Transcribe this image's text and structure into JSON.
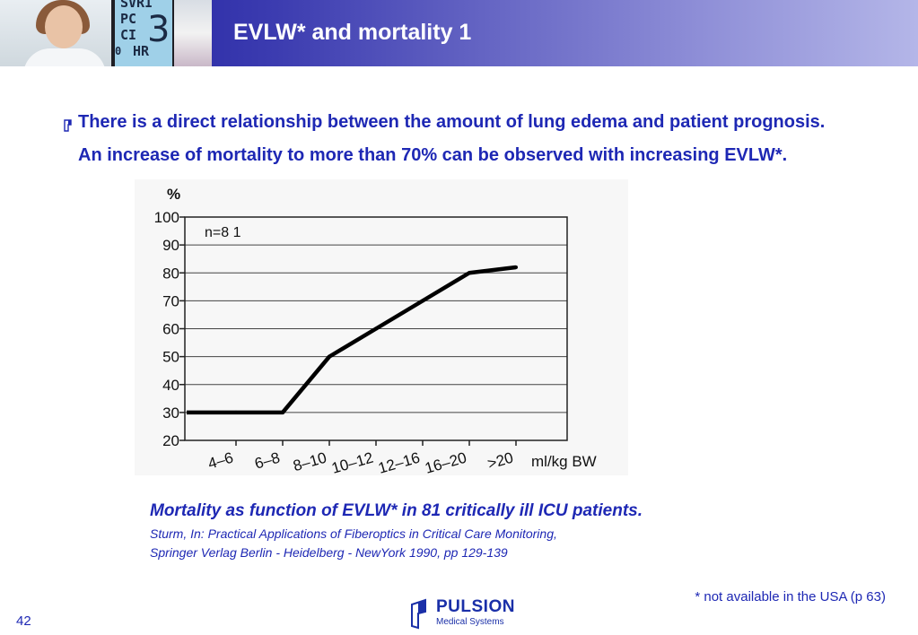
{
  "header": {
    "title": "EVLW* and mortality 1",
    "monitor_labels": [
      "SVRI",
      "PC",
      "CI",
      "HR"
    ],
    "monitor_big": "3",
    "monitor_small": "0"
  },
  "bullet": {
    "line1": "There is a direct relationship between the amount of lung edema and patient prognosis.",
    "line2": "An increase of mortality to more than 70% can be observed with increasing EVLW*."
  },
  "chart_data": {
    "type": "line",
    "ylabel": "%",
    "xlabel": "ml/kg BW",
    "annotation": "n=8 1",
    "categories": [
      "4–6",
      "6–8",
      "8–10",
      "10–12",
      "12–16",
      "16–20",
      ">20"
    ],
    "y_ticks": [
      20,
      30,
      40,
      50,
      60,
      70,
      80,
      90,
      100
    ],
    "ylim": [
      20,
      100
    ],
    "grid": true,
    "series": [
      {
        "x": [
          "4–6",
          "6–8",
          "8–10",
          "10–12",
          "12–16",
          "16–20",
          ">20"
        ],
        "values": [
          30,
          30,
          50,
          60,
          70,
          80,
          82
        ]
      }
    ]
  },
  "caption": {
    "title": "Mortality as function of EVLW* in 81 critically ill ICU patients.",
    "source_line1": "Sturm, In: Practical Applications of Fiberoptics in Critical Care Monitoring,",
    "source_line2": "Springer Verlag Berlin - Heidelberg - NewYork 1990, pp 129-139"
  },
  "footer": {
    "footnote": "* not available in the USA (p 63)",
    "page_number": "42",
    "logo_name": "PULSION",
    "logo_sub": "Medical Systems"
  },
  "colors": {
    "accent": "#1e28b4",
    "banner_start": "#14149a",
    "banner_end": "#b4b6e8"
  }
}
